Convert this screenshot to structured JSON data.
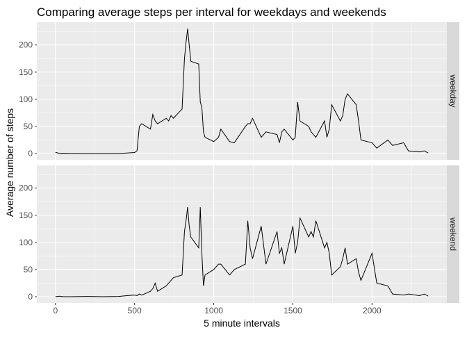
{
  "chart_data": {
    "type": "line",
    "title": "Comparing average steps per interval for weekdays and weekends",
    "x_label": "5 minute intervals",
    "y_label": "Average number of steps",
    "x": [
      0,
      25,
      50,
      100,
      200,
      300,
      400,
      450,
      500,
      515,
      530,
      545,
      600,
      615,
      630,
      645,
      700,
      715,
      730,
      745,
      800,
      815,
      825,
      835,
      845,
      855,
      905,
      915,
      925,
      935,
      945,
      1000,
      1030,
      1045,
      1100,
      1130,
      1200,
      1215,
      1230,
      1245,
      1300,
      1330,
      1400,
      1415,
      1430,
      1445,
      1500,
      1515,
      1530,
      1545,
      1600,
      1615,
      1630,
      1645,
      1700,
      1715,
      1730,
      1745,
      1800,
      1815,
      1830,
      1845,
      1900,
      1915,
      1930,
      2000,
      2030,
      2100,
      2130,
      2200,
      2230,
      2300,
      2330,
      2355
    ],
    "series": [
      {
        "name": "weekday",
        "color": "#000000",
        "values": [
          2.3,
          0.3,
          0.5,
          0.2,
          0,
          0,
          0,
          1,
          2,
          5,
          50,
          55,
          45,
          72,
          60,
          55,
          65,
          60,
          70,
          65,
          82,
          175,
          205,
          230,
          200,
          170,
          165,
          95,
          85,
          40,
          30,
          22,
          30,
          45,
          22,
          20,
          50,
          55,
          55,
          65,
          30,
          40,
          35,
          20,
          40,
          45,
          25,
          30,
          95,
          60,
          50,
          40,
          35,
          30,
          60,
          30,
          45,
          90,
          60,
          70,
          100,
          110,
          90,
          60,
          25,
          20,
          10,
          25,
          15,
          20,
          5,
          3,
          5,
          1
        ]
      },
      {
        "name": "weekend",
        "color": "#000000",
        "values": [
          0,
          1,
          0,
          0,
          0.5,
          0,
          0.5,
          2,
          3,
          2,
          5,
          3,
          10,
          15,
          25,
          10,
          20,
          25,
          30,
          35,
          40,
          120,
          140,
          165,
          130,
          110,
          90,
          165,
          80,
          20,
          40,
          50,
          60,
          60,
          40,
          50,
          60,
          140,
          90,
          70,
          130,
          60,
          120,
          80,
          90,
          60,
          130,
          80,
          100,
          145,
          110,
          120,
          110,
          140,
          90,
          100,
          80,
          40,
          55,
          70,
          90,
          60,
          70,
          45,
          30,
          80,
          25,
          20,
          5,
          3,
          5,
          2,
          5,
          1
        ]
      }
    ],
    "xlim": [
      -117.75,
      2472.75
    ],
    "xticks": [
      0,
      500,
      1000,
      1500,
      2000
    ],
    "ylim": [
      -11.5,
      241.9
    ],
    "yticks": [
      0,
      50,
      100,
      150,
      200
    ],
    "grid": true
  }
}
